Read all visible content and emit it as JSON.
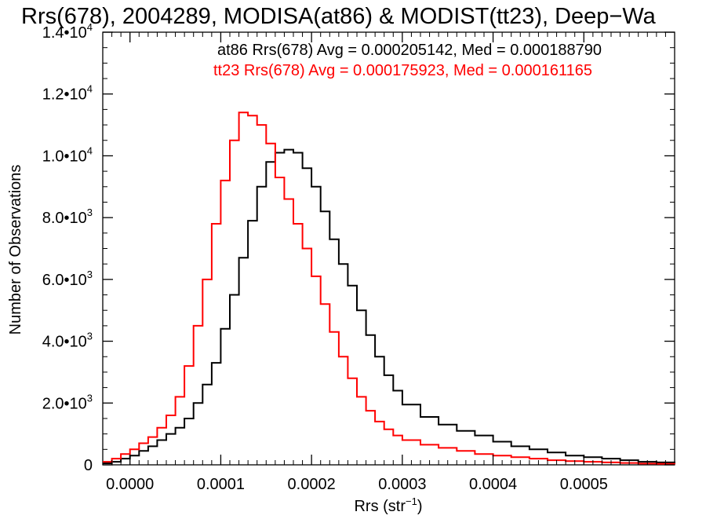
{
  "chart_data": {
    "type": "line",
    "title": "Rrs(678), 2004289, MODISA(at86) & MODIST(tt23), Deep−Wa",
    "xlabel": "Rrs (str",
    "xlabel_sup": "−1",
    "xlabel_close": ")",
    "ylabel": "Number of Observations",
    "xlim": [
      -3e-05,
      0.0006
    ],
    "ylim": [
      0,
      14000
    ],
    "x_ticks": [
      {
        "value": 0.0,
        "label": "0.0000"
      },
      {
        "value": 0.0001,
        "label": "0.0001"
      },
      {
        "value": 0.0002,
        "label": "0.0002"
      },
      {
        "value": 0.0003,
        "label": "0.0003"
      },
      {
        "value": 0.0004,
        "label": "0.0004"
      },
      {
        "value": 0.0005,
        "label": "0.0005"
      }
    ],
    "y_ticks": [
      {
        "value": 0,
        "mantissa": "0",
        "exp": ""
      },
      {
        "value": 2000,
        "mantissa": "2.0•10",
        "exp": "3"
      },
      {
        "value": 4000,
        "mantissa": "4.0•10",
        "exp": "3"
      },
      {
        "value": 6000,
        "mantissa": "6.0•10",
        "exp": "3"
      },
      {
        "value": 8000,
        "mantissa": "8.0•10",
        "exp": "3"
      },
      {
        "value": 10000,
        "mantissa": "1.0•10",
        "exp": "4"
      },
      {
        "value": 12000,
        "mantissa": "1.2•10",
        "exp": "4"
      },
      {
        "value": 14000,
        "mantissa": "1.4•10",
        "exp": "4"
      }
    ],
    "annotations": [
      {
        "text": "at86 Rrs(678) Avg = 0.000205142, Med = 0.000188790",
        "color": "#000000"
      },
      {
        "text": "tt23 Rrs(678) Avg = 0.000175923, Med = 0.000161165",
        "color": "#ff0000"
      }
    ],
    "series": [
      {
        "color": "#000000",
        "x": [
          -3e-05,
          -2e-05,
          -1e-05,
          0.0,
          1e-05,
          2e-05,
          3e-05,
          4e-05,
          5e-05,
          6e-05,
          7e-05,
          8e-05,
          9e-05,
          0.0001,
          0.00011,
          0.00012,
          0.00013,
          0.00014,
          0.00015,
          0.00016,
          0.00017,
          0.00018,
          0.00019,
          0.0002,
          0.00021,
          0.00022,
          0.00023,
          0.00024,
          0.00025,
          0.00026,
          0.00027,
          0.00028,
          0.00029,
          0.0003,
          0.00032,
          0.00034,
          0.00036,
          0.00038,
          0.0004,
          0.00042,
          0.00044,
          0.00046,
          0.00048,
          0.0005,
          0.00052,
          0.00054,
          0.00056,
          0.00058,
          0.0006
        ],
        "y": [
          50,
          100,
          200,
          300,
          450,
          600,
          800,
          1000,
          1200,
          1500,
          2000,
          2600,
          3300,
          4400,
          5500,
          6700,
          7900,
          9000,
          9800,
          10100,
          10200,
          10100,
          9600,
          9000,
          8200,
          7300,
          6500,
          5800,
          5000,
          4200,
          3500,
          2900,
          2400,
          1950,
          1550,
          1300,
          1100,
          950,
          750,
          600,
          500,
          400,
          300,
          250,
          200,
          150,
          100,
          80,
          50
        ]
      },
      {
        "color": "#ff0000",
        "x": [
          -3e-05,
          -2e-05,
          -1e-05,
          0.0,
          1e-05,
          2e-05,
          3e-05,
          4e-05,
          5e-05,
          6e-05,
          7e-05,
          8e-05,
          9e-05,
          0.0001,
          0.00011,
          0.00012,
          0.00013,
          0.00014,
          0.00015,
          0.00016,
          0.00017,
          0.00018,
          0.00019,
          0.0002,
          0.00021,
          0.00022,
          0.00023,
          0.00024,
          0.00025,
          0.00026,
          0.00027,
          0.00028,
          0.00029,
          0.0003,
          0.00032,
          0.00034,
          0.00036,
          0.00038,
          0.0004,
          0.00042,
          0.00044,
          0.00046,
          0.00048,
          0.0005,
          0.00052,
          0.00054,
          0.00056,
          0.00058,
          0.0006
        ],
        "y": [
          100,
          200,
          350,
          500,
          700,
          900,
          1200,
          1600,
          2200,
          3200,
          4500,
          6000,
          7800,
          9200,
          10500,
          11400,
          11300,
          11000,
          10400,
          9300,
          8600,
          7800,
          7000,
          6100,
          5200,
          4300,
          3500,
          2800,
          2200,
          1750,
          1400,
          1150,
          950,
          800,
          650,
          550,
          450,
          350,
          300,
          250,
          200,
          150,
          120,
          100,
          80,
          60,
          40,
          30,
          20
        ]
      }
    ]
  }
}
